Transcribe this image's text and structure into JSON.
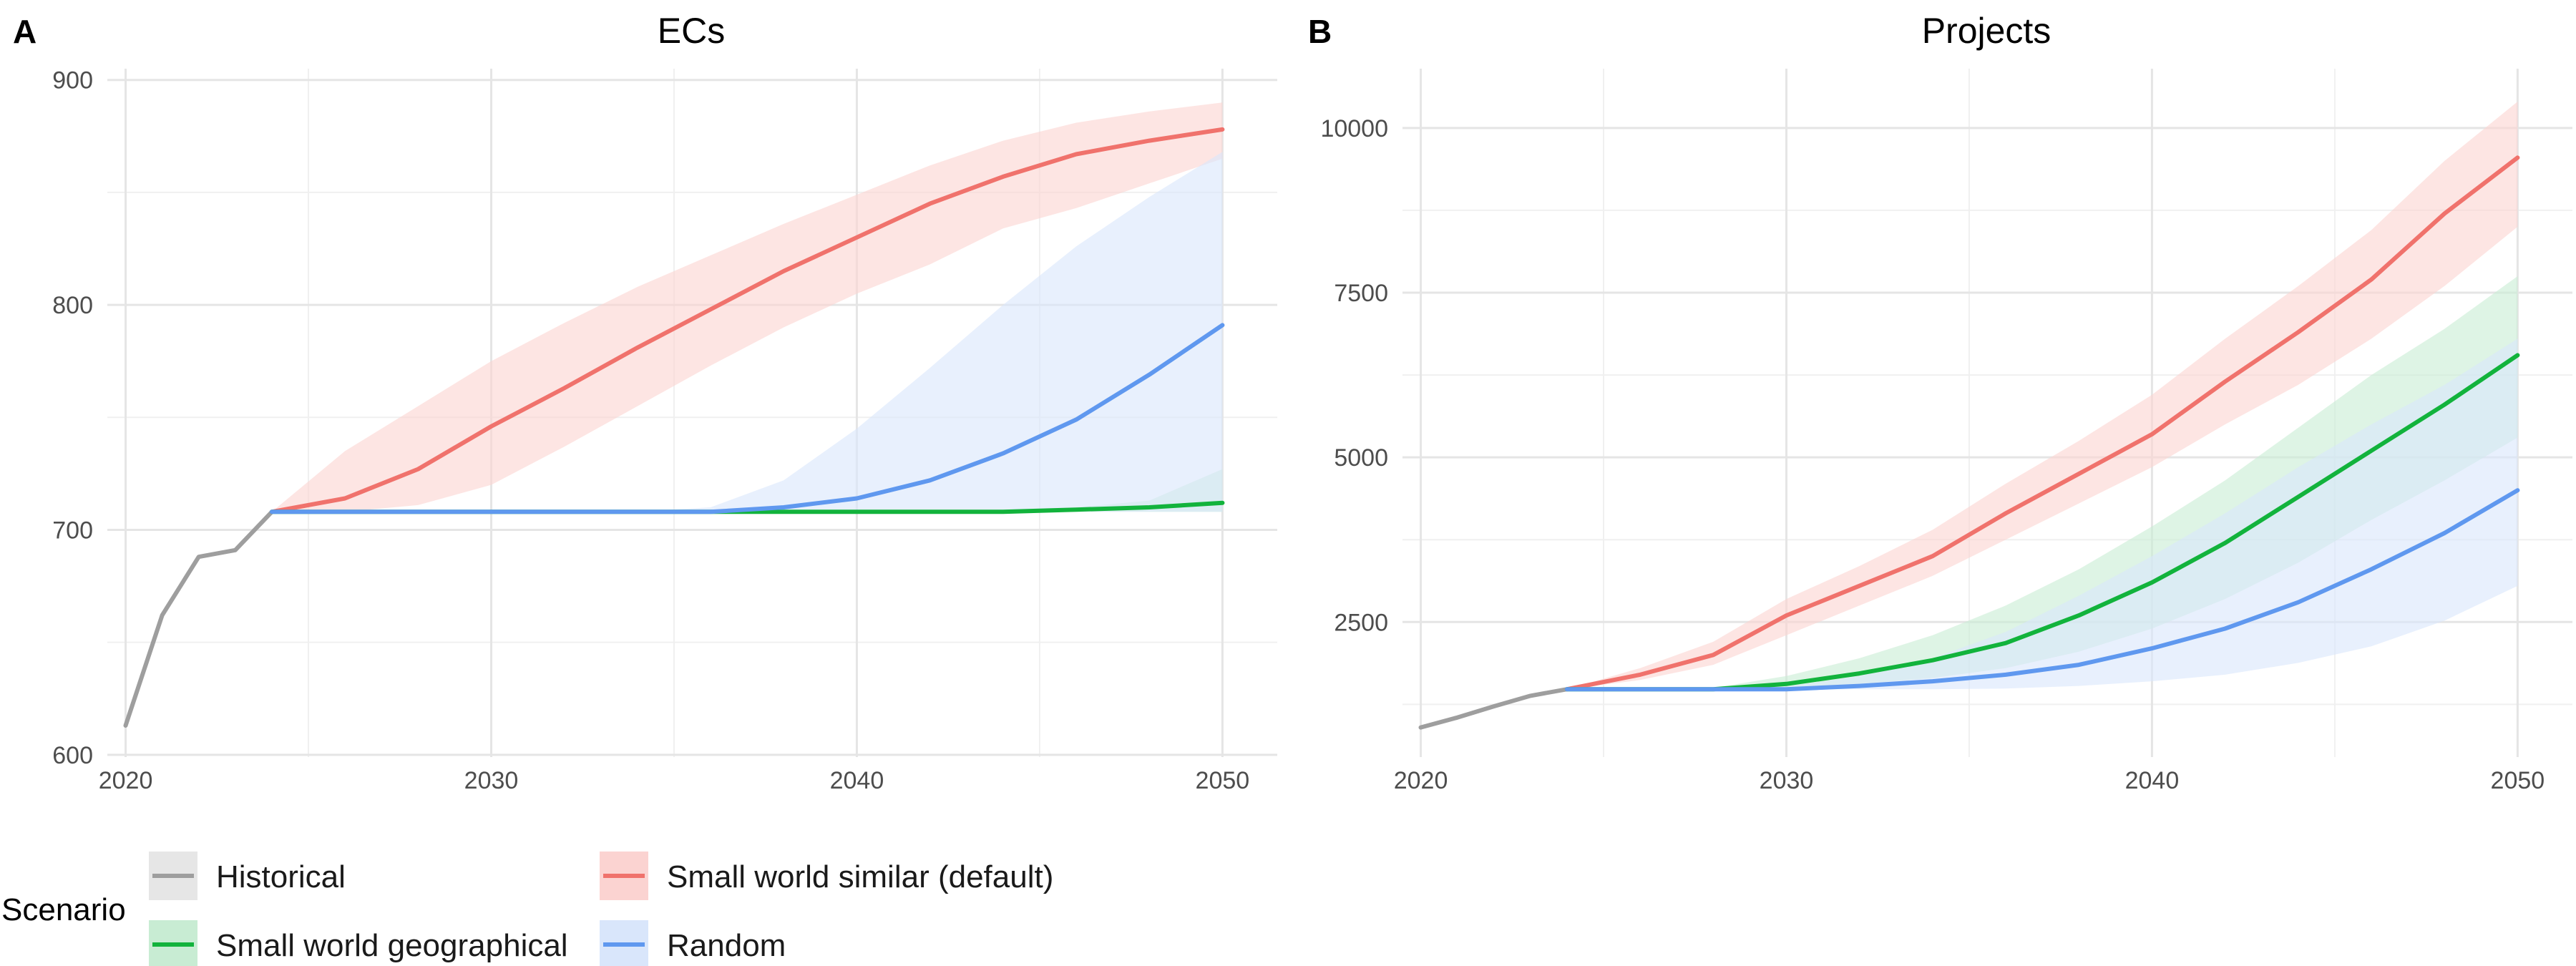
{
  "panels": [
    {
      "letter": "A",
      "title": "ECs"
    },
    {
      "letter": "B",
      "title": "Projects"
    }
  ],
  "legend": {
    "title": "Scenario",
    "items": [
      {
        "label": "Historical",
        "color": "#9e9e9e",
        "fill": "#e6e6e6"
      },
      {
        "label": "Small world similar (default)",
        "color": "#f0726c",
        "fill": "#fbd3d1"
      },
      {
        "label": "Small world geographical",
        "color": "#12b33c",
        "fill": "#c8ecd3"
      },
      {
        "label": "Random",
        "color": "#5f98ef",
        "fill": "#d9e6fb"
      }
    ]
  },
  "chart_data": [
    {
      "type": "line",
      "title": "ECs",
      "xlabel": "",
      "ylabel": "",
      "xlim": [
        2019.5,
        2051.5
      ],
      "ylim": [
        599,
        905
      ],
      "xticks": [
        2020,
        2030,
        2040,
        2050
      ],
      "yticks": [
        600,
        700,
        800,
        900
      ],
      "grid": true,
      "series": [
        {
          "name": "Historical",
          "color": "#9e9e9e",
          "x": [
            2020,
            2021,
            2022,
            2023,
            2024
          ],
          "y": [
            613,
            662,
            688,
            691,
            708
          ]
        },
        {
          "name": "Small world similar (default)",
          "color": "#f0726c",
          "fill": "#fbd3d1",
          "x": [
            2024,
            2026,
            2028,
            2030,
            2032,
            2034,
            2036,
            2038,
            2040,
            2042,
            2044,
            2046,
            2048,
            2050
          ],
          "y": [
            708,
            714,
            727,
            746,
            763,
            781,
            798,
            815,
            830,
            845,
            857,
            867,
            873,
            878
          ],
          "lower": [
            708,
            708,
            711,
            720,
            737,
            755,
            773,
            790,
            805,
            818,
            834,
            843,
            854,
            865
          ],
          "upper": [
            708,
            735,
            755,
            775,
            792,
            808,
            822,
            836,
            849,
            862,
            873,
            881,
            886,
            890
          ]
        },
        {
          "name": "Small world geographical",
          "color": "#12b33c",
          "fill": "#c8ecd3",
          "x": [
            2024,
            2026,
            2028,
            2030,
            2032,
            2034,
            2036,
            2038,
            2040,
            2042,
            2044,
            2046,
            2048,
            2050
          ],
          "y": [
            708,
            708,
            708,
            708,
            708,
            708,
            708,
            708,
            708,
            708,
            708,
            709,
            710,
            712
          ],
          "lower": [
            708,
            708,
            708,
            708,
            708,
            708,
            708,
            708,
            708,
            708,
            708,
            708,
            708,
            708
          ],
          "upper": [
            708,
            708,
            708,
            708,
            708,
            708,
            708,
            708,
            708,
            708,
            709,
            710,
            713,
            727
          ]
        },
        {
          "name": "Random",
          "color": "#5f98ef",
          "fill": "#d9e6fb",
          "x": [
            2024,
            2026,
            2028,
            2030,
            2032,
            2034,
            2036,
            2038,
            2040,
            2042,
            2044,
            2046,
            2048,
            2050
          ],
          "y": [
            708,
            708,
            708,
            708,
            708,
            708,
            708,
            710,
            714,
            722,
            734,
            749,
            769,
            791
          ],
          "lower": [
            708,
            708,
            708,
            708,
            708,
            708,
            708,
            708,
            708,
            708,
            708,
            708,
            708,
            708
          ],
          "upper": [
            708,
            708,
            708,
            708,
            708,
            708,
            710,
            722,
            745,
            772,
            800,
            826,
            848,
            868
          ]
        }
      ]
    },
    {
      "type": "line",
      "title": "Projects",
      "xlabel": "",
      "ylabel": "",
      "xlim": [
        2019.5,
        2051.5
      ],
      "ylim": [
        450,
        10900
      ],
      "xticks": [
        2020,
        2030,
        2040,
        2050
      ],
      "yticks": [
        2500,
        5000,
        7500,
        10000
      ],
      "grid": true,
      "series": [
        {
          "name": "Historical",
          "color": "#9e9e9e",
          "x": [
            2020,
            2021,
            2022,
            2023,
            2024
          ],
          "y": [
            900,
            1050,
            1220,
            1380,
            1480
          ]
        },
        {
          "name": "Small world similar (default)",
          "color": "#f0726c",
          "fill": "#fbd3d1",
          "x": [
            2024,
            2026,
            2028,
            2030,
            2032,
            2034,
            2036,
            2038,
            2040,
            2042,
            2044,
            2046,
            2048,
            2050
          ],
          "y": [
            1480,
            1700,
            2000,
            2600,
            3050,
            3500,
            4150,
            4750,
            5350,
            6150,
            6900,
            7700,
            8700,
            9550
          ],
          "lower": [
            1480,
            1620,
            1850,
            2300,
            2750,
            3200,
            3750,
            4300,
            4850,
            5500,
            6100,
            6800,
            7600,
            8500
          ],
          "upper": [
            1480,
            1800,
            2200,
            2850,
            3350,
            3900,
            4600,
            5250,
            5950,
            6800,
            7600,
            8450,
            9500,
            10400
          ]
        },
        {
          "name": "Small world geographical",
          "color": "#12b33c",
          "fill": "#c8ecd3",
          "x": [
            2024,
            2026,
            2028,
            2030,
            2032,
            2034,
            2036,
            2038,
            2040,
            2042,
            2044,
            2046,
            2048,
            2050
          ],
          "y": [
            1480,
            1480,
            1480,
            1560,
            1720,
            1920,
            2180,
            2600,
            3100,
            3700,
            4400,
            5100,
            5800,
            6550
          ],
          "lower": [
            1480,
            1480,
            1480,
            1500,
            1560,
            1650,
            1800,
            2050,
            2400,
            2850,
            3400,
            4050,
            4650,
            5300
          ],
          "upper": [
            1480,
            1480,
            1500,
            1680,
            1950,
            2300,
            2750,
            3300,
            3950,
            4650,
            5450,
            6250,
            6950,
            7750
          ]
        },
        {
          "name": "Random",
          "color": "#5f98ef",
          "fill": "#d9e6fb",
          "x": [
            2024,
            2026,
            2028,
            2030,
            2032,
            2034,
            2036,
            2038,
            2040,
            2042,
            2044,
            2046,
            2048,
            2050
          ],
          "y": [
            1480,
            1480,
            1480,
            1480,
            1530,
            1600,
            1700,
            1850,
            2100,
            2400,
            2800,
            3300,
            3850,
            4500
          ],
          "lower": [
            1480,
            1480,
            1480,
            1480,
            1480,
            1480,
            1490,
            1530,
            1600,
            1700,
            1880,
            2130,
            2520,
            3050
          ],
          "upper": [
            1480,
            1480,
            1480,
            1520,
            1680,
            1950,
            2350,
            2900,
            3500,
            4150,
            4850,
            5500,
            6100,
            6800
          ]
        }
      ]
    }
  ]
}
